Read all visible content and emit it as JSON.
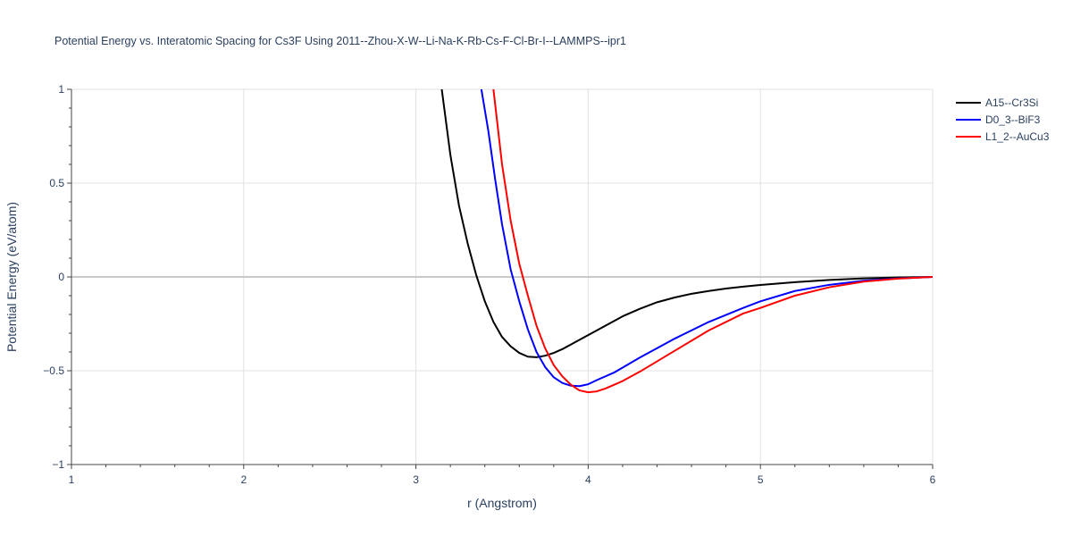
{
  "chart_data": {
    "type": "line",
    "title": "Potential Energy vs. Interatomic Spacing for Cs3F Using 2011--Zhou-X-W--Li-Na-K-Rb-Cs-F-Cl-Br-I--LAMMPS--ipr1",
    "xlabel": "r (Angstrom)",
    "ylabel": "Potential Energy (eV/atom)",
    "xlim": [
      1,
      6
    ],
    "ylim": [
      -1,
      1
    ],
    "x_ticks": [
      1,
      2,
      3,
      4,
      5,
      6
    ],
    "y_ticks": [
      -1,
      -0.5,
      0,
      0.5,
      1
    ],
    "x_tick_labels": [
      "1",
      "2",
      "3",
      "4",
      "5",
      "6"
    ],
    "y_tick_labels": [
      "−1",
      "−0.5",
      "0",
      "0.5",
      "1"
    ],
    "grid": true,
    "legend_position": "top-right outside",
    "series": [
      {
        "name": "A15--Cr3Si",
        "color": "#000000",
        "x": [
          3.15,
          3.2,
          3.25,
          3.3,
          3.35,
          3.4,
          3.45,
          3.5,
          3.55,
          3.6,
          3.65,
          3.7,
          3.75,
          3.8,
          3.85,
          3.9,
          4.0,
          4.1,
          4.2,
          4.3,
          4.4,
          4.5,
          4.6,
          4.7,
          4.8,
          4.9,
          5.0,
          5.2,
          5.4,
          5.6,
          5.8,
          6.0
        ],
        "y": [
          1.0,
          0.65,
          0.38,
          0.18,
          0.01,
          -0.13,
          -0.24,
          -0.32,
          -0.37,
          -0.405,
          -0.425,
          -0.428,
          -0.42,
          -0.405,
          -0.385,
          -0.36,
          -0.31,
          -0.26,
          -0.21,
          -0.17,
          -0.135,
          -0.11,
          -0.09,
          -0.075,
          -0.062,
          -0.052,
          -0.043,
          -0.028,
          -0.016,
          -0.008,
          -0.003,
          0.0
        ]
      },
      {
        "name": "D0_3--BiF3",
        "color": "#0000ff",
        "x": [
          3.38,
          3.42,
          3.46,
          3.5,
          3.55,
          3.6,
          3.65,
          3.7,
          3.75,
          3.8,
          3.85,
          3.9,
          3.95,
          4.0,
          4.05,
          4.15,
          4.3,
          4.5,
          4.7,
          4.9,
          5.0,
          5.2,
          5.4,
          5.6,
          5.8,
          6.0
        ],
        "y": [
          1.0,
          0.78,
          0.52,
          0.28,
          0.04,
          -0.13,
          -0.28,
          -0.4,
          -0.48,
          -0.535,
          -0.565,
          -0.58,
          -0.582,
          -0.572,
          -0.55,
          -0.51,
          -0.43,
          -0.33,
          -0.24,
          -0.165,
          -0.13,
          -0.075,
          -0.042,
          -0.02,
          -0.008,
          0.0
        ]
      },
      {
        "name": "L1_2--AuCu3",
        "color": "#ff0000",
        "x": [
          3.45,
          3.5,
          3.55,
          3.6,
          3.65,
          3.7,
          3.75,
          3.8,
          3.85,
          3.9,
          3.95,
          4.0,
          4.05,
          4.1,
          4.2,
          4.3,
          4.5,
          4.7,
          4.9,
          5.0,
          5.2,
          5.4,
          5.6,
          5.8,
          6.0
        ],
        "y": [
          1.0,
          0.6,
          0.3,
          0.07,
          -0.1,
          -0.26,
          -0.38,
          -0.47,
          -0.53,
          -0.575,
          -0.605,
          -0.615,
          -0.61,
          -0.595,
          -0.555,
          -0.505,
          -0.395,
          -0.285,
          -0.195,
          -0.165,
          -0.1,
          -0.055,
          -0.025,
          -0.009,
          0.0
        ]
      }
    ]
  }
}
